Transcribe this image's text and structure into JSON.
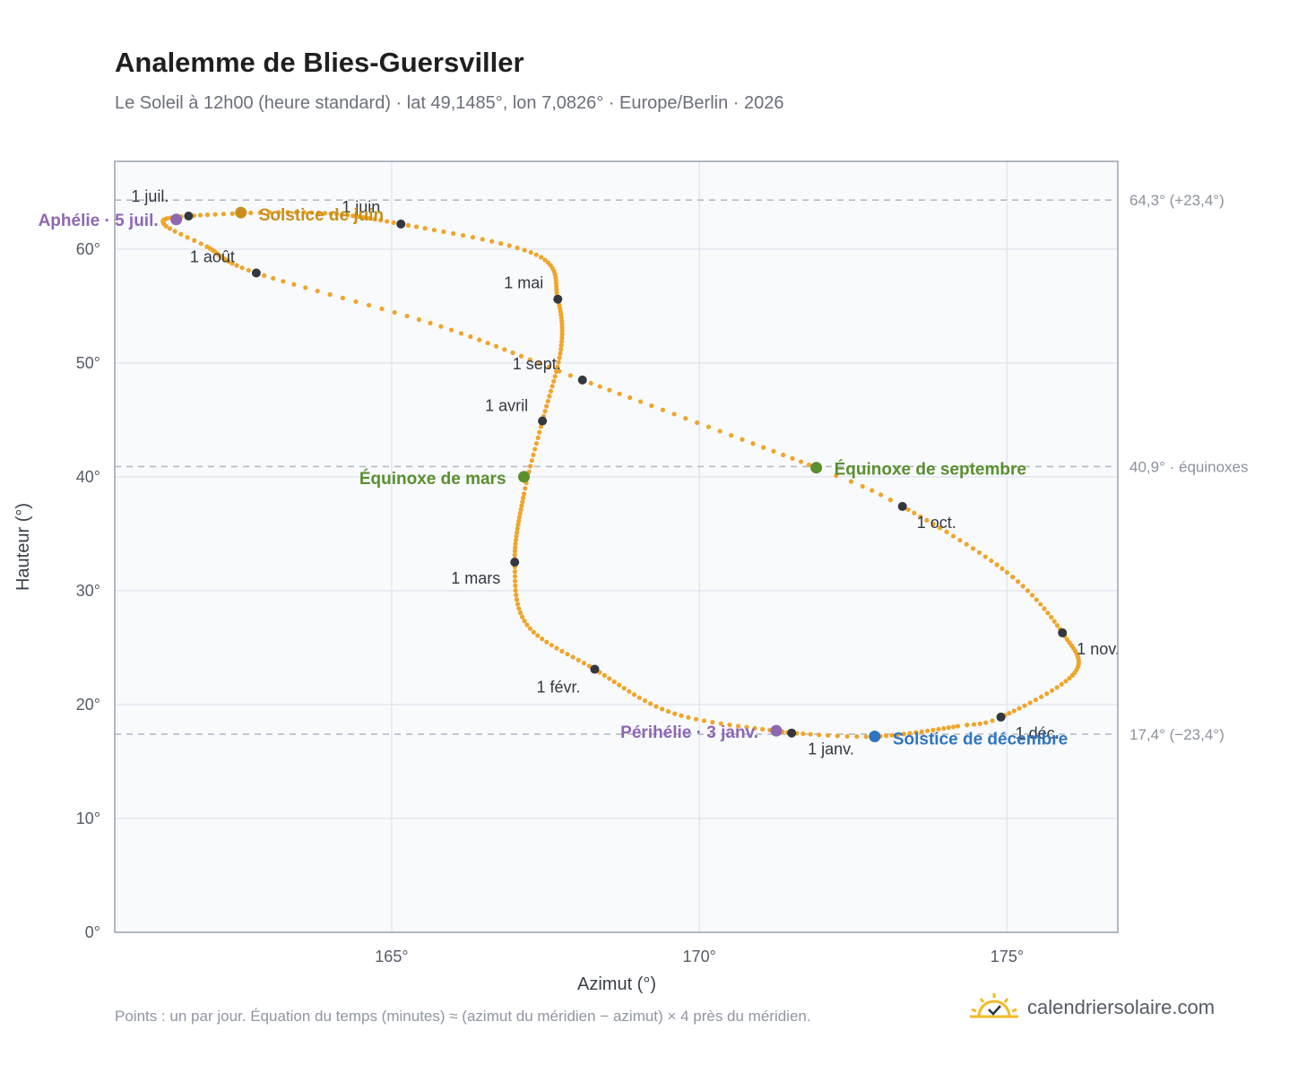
{
  "title": "Analemme de Blies-Guersviller",
  "subtitle": "Le Soleil à 12h00 (heure standard) · lat 49,1485°, lon 7,0826° · Europe/Berlin · 2026",
  "footnote": "Points : un par jour. Équation du temps (minutes) ≈ (azimut du méridien − azimut) × 4 près du méridien.",
  "brand": {
    "name": "calendriersolaire.com",
    "icon": "sun-icon"
  },
  "colors": {
    "curve": "#f0a52a",
    "month_dot": "#333840",
    "solstice_june": "#c8901a",
    "solstice_dec": "#2f74c0",
    "equinox": "#5a8f2e",
    "apsis": "#8e67b3",
    "grid": "#e3e7ee",
    "plot_bg": "#f8fafc"
  },
  "chart_data": {
    "type": "scatter",
    "xlabel": "Azimut (°)",
    "ylabel": "Hauteur (°)",
    "xlim": [
      160.5,
      176.8
    ],
    "ylim": [
      0,
      67.7
    ],
    "xticks": [
      {
        "value": 165,
        "label": "165°"
      },
      {
        "value": 170,
        "label": "170°"
      },
      {
        "value": 175,
        "label": "175°"
      }
    ],
    "yticks": [
      {
        "value": 0,
        "label": "0°"
      },
      {
        "value": 10,
        "label": "10°"
      },
      {
        "value": 20,
        "label": "20°"
      },
      {
        "value": 30,
        "label": "30°"
      },
      {
        "value": 40,
        "label": "40°"
      },
      {
        "value": 50,
        "label": "50°"
      },
      {
        "value": 60,
        "label": "60°"
      }
    ],
    "grid": true,
    "reference_lines": [
      {
        "y": 64.3,
        "label": "64,3° (+23,4°)"
      },
      {
        "y": 40.9,
        "label": "40,9° · équinoxes"
      },
      {
        "y": 17.4,
        "label": "17,4° (−23,4°)"
      }
    ],
    "month_markers": [
      {
        "label": "1 janv.",
        "azimuth": 171.5,
        "altitude": 17.5
      },
      {
        "label": "1 févr.",
        "azimuth": 168.3,
        "altitude": 23.1
      },
      {
        "label": "1 mars",
        "azimuth": 167.0,
        "altitude": 32.5
      },
      {
        "label": "1 avril",
        "azimuth": 167.45,
        "altitude": 44.9
      },
      {
        "label": "1 mai",
        "azimuth": 167.7,
        "altitude": 55.6
      },
      {
        "label": "1 juin",
        "azimuth": 165.15,
        "altitude": 62.2
      },
      {
        "label": "1 juil.",
        "azimuth": 161.7,
        "altitude": 62.9
      },
      {
        "label": "1 août",
        "azimuth": 162.8,
        "altitude": 57.9
      },
      {
        "label": "1 sept.",
        "azimuth": 168.1,
        "altitude": 48.5
      },
      {
        "label": "1 oct.",
        "azimuth": 173.3,
        "altitude": 37.4
      },
      {
        "label": "1 nov.",
        "azimuth": 175.9,
        "altitude": 26.3
      },
      {
        "label": "1 déc.",
        "azimuth": 174.9,
        "altitude": 18.9
      }
    ],
    "events": [
      {
        "label": "Solstice de juin",
        "azimuth": 162.55,
        "altitude": 63.2,
        "kind": "solstice_june"
      },
      {
        "label": "Solstice de décembre",
        "azimuth": 172.85,
        "altitude": 17.2,
        "kind": "solstice_dec"
      },
      {
        "label": "Équinoxe de mars",
        "azimuth": 167.15,
        "altitude": 40.0,
        "kind": "equinox"
      },
      {
        "label": "Équinoxe de septembre",
        "azimuth": 171.9,
        "altitude": 40.8,
        "kind": "equinox"
      },
      {
        "label": "Aphélie · 5 juil.",
        "azimuth": 161.5,
        "altitude": 62.6,
        "kind": "apsis"
      },
      {
        "label": "Périhélie · 3 janv.",
        "azimuth": 171.25,
        "altitude": 17.7,
        "kind": "apsis"
      }
    ]
  }
}
